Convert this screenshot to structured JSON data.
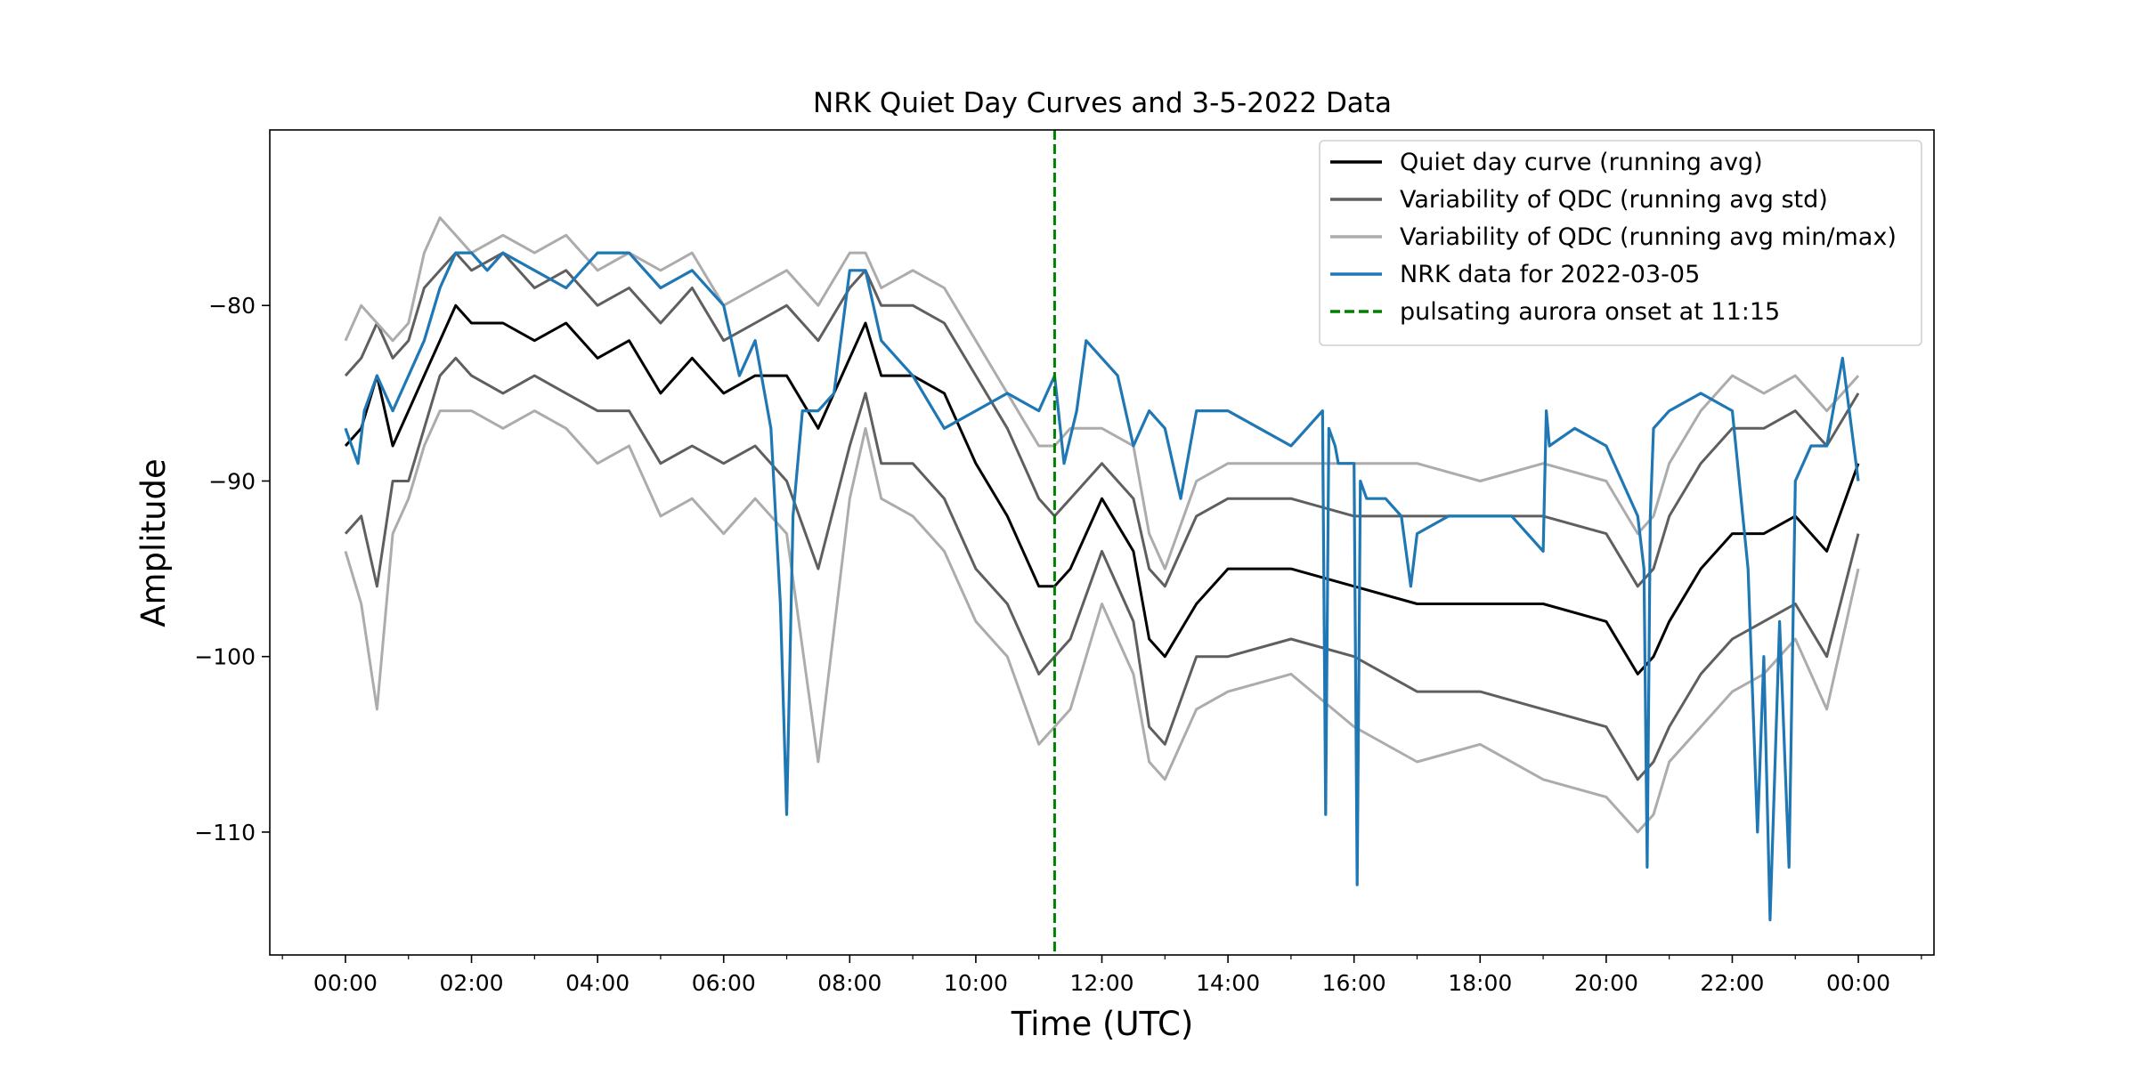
{
  "chart_data": {
    "type": "line",
    "title": "NRK Quiet Day Curves and 3-5-2022 Data",
    "xlabel": "Time (UTC)",
    "ylabel": "Amplitude",
    "xlim": [
      -1.2,
      25.2
    ],
    "ylim": [
      -117,
      -70
    ],
    "x_unit": "hours UTC",
    "x_ticks": [
      0,
      2,
      4,
      6,
      8,
      10,
      12,
      14,
      16,
      18,
      20,
      22,
      24
    ],
    "x_tick_labels": [
      "00:00",
      "02:00",
      "04:00",
      "06:00",
      "08:00",
      "10:00",
      "12:00",
      "14:00",
      "16:00",
      "18:00",
      "20:00",
      "22:00",
      "00:00"
    ],
    "y_ticks": [
      -80,
      -90,
      -100,
      -110
    ],
    "y_tick_labels": [
      "−80",
      "−90",
      "−100",
      "−110"
    ],
    "grid": false,
    "legend_position": "top-right",
    "series": [
      {
        "name": "Quiet day curve (running avg)",
        "color": "#000000",
        "style": "solid",
        "x": [
          0.0,
          0.25,
          0.5,
          0.75,
          1.0,
          1.25,
          1.5,
          1.75,
          2.0,
          2.5,
          3.0,
          3.5,
          4.0,
          4.5,
          5.0,
          5.5,
          6.0,
          6.5,
          7.0,
          7.5,
          8.0,
          8.25,
          8.5,
          9.0,
          9.5,
          10.0,
          10.5,
          11.0,
          11.25,
          11.5,
          12.0,
          12.5,
          12.75,
          13.0,
          13.5,
          14.0,
          15.0,
          16.0,
          17.0,
          18.0,
          19.0,
          20.0,
          20.5,
          20.75,
          21.0,
          21.5,
          22.0,
          22.5,
          23.0,
          23.5,
          24.0
        ],
        "values": [
          -88,
          -87,
          -84,
          -88,
          -86,
          -84,
          -82,
          -80,
          -81,
          -81,
          -82,
          -81,
          -83,
          -82,
          -85,
          -83,
          -85,
          -84,
          -84,
          -87,
          -83,
          -81,
          -84,
          -84,
          -85,
          -89,
          -92,
          -96,
          -96,
          -95,
          -91,
          -94,
          -99,
          -100,
          -97,
          -95,
          -95,
          -96,
          -97,
          -97,
          -97,
          -98,
          -101,
          -100,
          -98,
          -95,
          -93,
          -93,
          -92,
          -94,
          -89
        ]
      },
      {
        "name": "Variability of QDC (running avg std)",
        "color": "#5f5f5f",
        "style": "solid",
        "x": [
          0.0,
          0.25,
          0.5,
          0.75,
          1.0,
          1.25,
          1.5,
          1.75,
          2.0,
          2.5,
          3.0,
          3.5,
          4.0,
          4.5,
          5.0,
          5.5,
          6.0,
          6.5,
          7.0,
          7.5,
          8.0,
          8.25,
          8.5,
          9.0,
          9.5,
          10.0,
          10.5,
          11.0,
          11.25,
          11.5,
          12.0,
          12.5,
          12.75,
          13.0,
          13.5,
          14.0,
          15.0,
          16.0,
          17.0,
          18.0,
          19.0,
          20.0,
          20.5,
          20.75,
          21.0,
          21.5,
          22.0,
          22.5,
          23.0,
          23.5,
          24.0
        ],
        "values": [
          -84,
          -83,
          -81,
          -83,
          -82,
          -79,
          -78,
          -77,
          -78,
          -77,
          -79,
          -78,
          -80,
          -79,
          -81,
          -79,
          -82,
          -81,
          -80,
          -82,
          -79,
          -78,
          -80,
          -80,
          -81,
          -84,
          -87,
          -91,
          -92,
          -91,
          -89,
          -91,
          -95,
          -96,
          -92,
          -91,
          -91,
          -92,
          -92,
          -92,
          -92,
          -93,
          -96,
          -95,
          -92,
          -89,
          -87,
          -87,
          -86,
          -88,
          -85
        ]
      },
      {
        "name": "Variability of QDC (running avg std)",
        "color": "#5f5f5f",
        "style": "solid",
        "x": [
          0.0,
          0.25,
          0.5,
          0.75,
          1.0,
          1.25,
          1.5,
          1.75,
          2.0,
          2.5,
          3.0,
          3.5,
          4.0,
          4.5,
          5.0,
          5.5,
          6.0,
          6.5,
          7.0,
          7.5,
          8.0,
          8.25,
          8.5,
          9.0,
          9.5,
          10.0,
          10.5,
          11.0,
          11.25,
          11.5,
          12.0,
          12.5,
          12.75,
          13.0,
          13.5,
          14.0,
          15.0,
          16.0,
          17.0,
          18.0,
          19.0,
          20.0,
          20.5,
          20.75,
          21.0,
          21.5,
          22.0,
          22.5,
          23.0,
          23.5,
          24.0
        ],
        "values": [
          -93,
          -92,
          -96,
          -90,
          -90,
          -87,
          -84,
          -83,
          -84,
          -85,
          -84,
          -85,
          -86,
          -86,
          -89,
          -88,
          -89,
          -88,
          -90,
          -95,
          -88,
          -85,
          -89,
          -89,
          -91,
          -95,
          -97,
          -101,
          -100,
          -99,
          -94,
          -98,
          -104,
          -105,
          -100,
          -100,
          -99,
          -100,
          -102,
          -102,
          -103,
          -104,
          -107,
          -106,
          -104,
          -101,
          -99,
          -98,
          -97,
          -100,
          -93
        ]
      },
      {
        "name": "Variability of QDC (running avg min/max)",
        "color": "#acacac",
        "style": "solid",
        "x": [
          0.0,
          0.25,
          0.5,
          0.75,
          1.0,
          1.25,
          1.5,
          1.75,
          2.0,
          2.5,
          3.0,
          3.5,
          4.0,
          4.5,
          5.0,
          5.5,
          6.0,
          6.5,
          7.0,
          7.5,
          8.0,
          8.25,
          8.5,
          9.0,
          9.5,
          10.0,
          10.5,
          11.0,
          11.25,
          11.5,
          12.0,
          12.5,
          12.75,
          13.0,
          13.5,
          14.0,
          15.0,
          16.0,
          17.0,
          18.0,
          19.0,
          20.0,
          20.5,
          20.75,
          21.0,
          21.5,
          22.0,
          22.5,
          23.0,
          23.5,
          24.0
        ],
        "values": [
          -82,
          -80,
          -81,
          -82,
          -81,
          -77,
          -75,
          -76,
          -77,
          -76,
          -77,
          -76,
          -78,
          -77,
          -78,
          -77,
          -80,
          -79,
          -78,
          -80,
          -77,
          -77,
          -79,
          -78,
          -79,
          -82,
          -85,
          -88,
          -88,
          -87,
          -87,
          -88,
          -93,
          -95,
          -90,
          -89,
          -89,
          -89,
          -89,
          -90,
          -89,
          -90,
          -93,
          -92,
          -89,
          -86,
          -84,
          -85,
          -84,
          -86,
          -84
        ]
      },
      {
        "name": "Variability of QDC (running avg min/max)",
        "color": "#acacac",
        "style": "solid",
        "x": [
          0.0,
          0.25,
          0.5,
          0.75,
          1.0,
          1.25,
          1.5,
          1.75,
          2.0,
          2.5,
          3.0,
          3.5,
          4.0,
          4.5,
          5.0,
          5.5,
          6.0,
          6.5,
          7.0,
          7.5,
          8.0,
          8.25,
          8.5,
          9.0,
          9.5,
          10.0,
          10.5,
          11.0,
          11.25,
          11.5,
          12.0,
          12.5,
          12.75,
          13.0,
          13.5,
          14.0,
          15.0,
          16.0,
          17.0,
          18.0,
          19.0,
          20.0,
          20.5,
          20.75,
          21.0,
          21.5,
          22.0,
          22.5,
          23.0,
          23.5,
          24.0
        ],
        "values": [
          -94,
          -97,
          -103,
          -93,
          -91,
          -88,
          -86,
          -86,
          -86,
          -87,
          -86,
          -87,
          -89,
          -88,
          -92,
          -91,
          -93,
          -91,
          -93,
          -106,
          -91,
          -87,
          -91,
          -92,
          -94,
          -98,
          -100,
          -105,
          -104,
          -103,
          -97,
          -101,
          -106,
          -107,
          -103,
          -102,
          -101,
          -104,
          -106,
          -105,
          -107,
          -108,
          -110,
          -109,
          -106,
          -104,
          -102,
          -101,
          -99,
          -103,
          -95
        ]
      },
      {
        "name": "NRK data for 2022-03-05",
        "color": "#1f77b4",
        "style": "solid",
        "x": [
          0.0,
          0.1,
          0.2,
          0.3,
          0.4,
          0.5,
          0.75,
          1.0,
          1.25,
          1.5,
          1.75,
          2.0,
          2.25,
          2.5,
          3.0,
          3.5,
          4.0,
          4.5,
          5.0,
          5.5,
          6.0,
          6.25,
          6.5,
          6.75,
          6.9,
          7.0,
          7.1,
          7.25,
          7.5,
          7.75,
          8.0,
          8.25,
          8.5,
          9.0,
          9.5,
          10.0,
          10.5,
          11.0,
          11.25,
          11.4,
          11.6,
          11.75,
          12.0,
          12.25,
          12.5,
          12.75,
          13.0,
          13.25,
          13.5,
          14.0,
          14.5,
          15.0,
          15.25,
          15.5,
          15.55,
          15.6,
          15.7,
          15.75,
          16.0,
          16.05,
          16.1,
          16.2,
          16.5,
          16.75,
          16.9,
          17.0,
          17.5,
          18.0,
          18.5,
          19.0,
          19.05,
          19.1,
          19.5,
          20.0,
          20.5,
          20.6,
          20.65,
          20.7,
          20.75,
          21.0,
          21.5,
          22.0,
          22.25,
          22.4,
          22.5,
          22.6,
          22.75,
          22.9,
          23.0,
          23.25,
          23.5,
          23.75,
          24.0
        ],
        "values": [
          -87,
          -88,
          -89,
          -86,
          -85,
          -84,
          -86,
          -84,
          -82,
          -79,
          -77,
          -77,
          -78,
          -77,
          -78,
          -79,
          -77,
          -77,
          -79,
          -78,
          -80,
          -84,
          -82,
          -87,
          -97,
          -109,
          -92,
          -86,
          -86,
          -85,
          -78,
          -78,
          -82,
          -84,
          -87,
          -86,
          -85,
          -86,
          -84,
          -89,
          -86,
          -82,
          -83,
          -84,
          -88,
          -86,
          -87,
          -91,
          -86,
          -86,
          -87,
          -88,
          -87,
          -86,
          -109,
          -87,
          -88,
          -89,
          -89,
          -113,
          -90,
          -91,
          -91,
          -92,
          -96,
          -93,
          -92,
          -92,
          -92,
          -94,
          -86,
          -88,
          -87,
          -88,
          -92,
          -95,
          -112,
          -92,
          -87,
          -86,
          -85,
          -86,
          -95,
          -110,
          -100,
          -115,
          -98,
          -112,
          -90,
          -88,
          -88,
          -83,
          -90
        ]
      }
    ],
    "vlines": [
      {
        "name": "pulsating aurora onset at 11:15",
        "x": 11.25,
        "color": "#008000",
        "style": "dashed"
      }
    ]
  }
}
